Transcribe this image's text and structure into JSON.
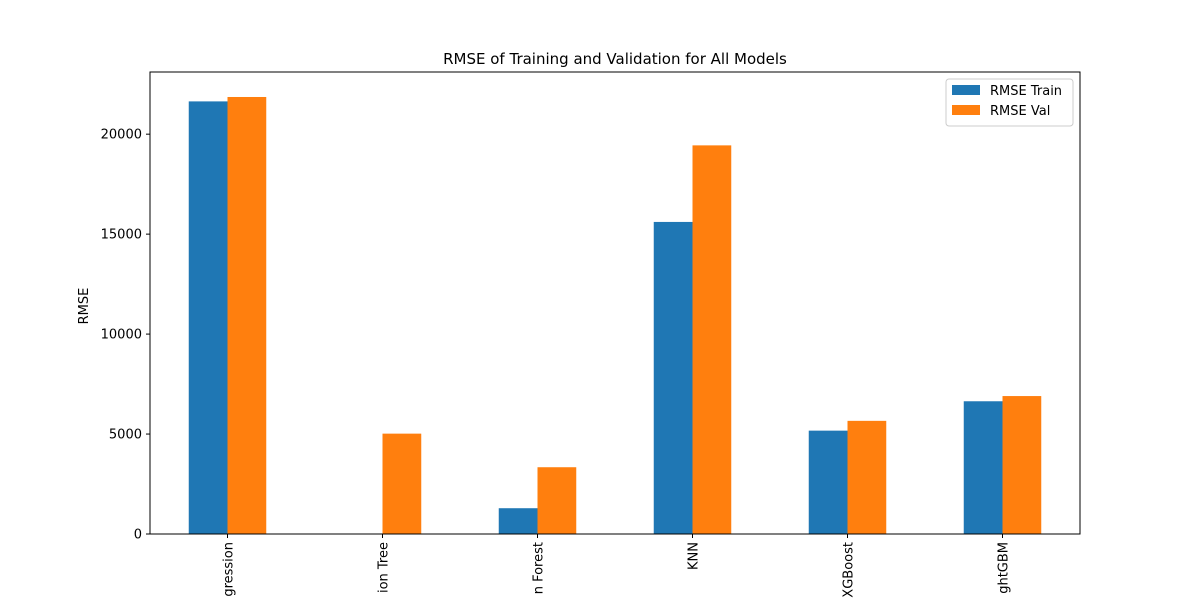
{
  "chart_data": {
    "type": "bar",
    "title": "RMSE of Training and Validation for All Models",
    "xlabel": "",
    "ylabel": "RMSE",
    "ylim": [
      0,
      23110
    ],
    "yticks": [
      0,
      5000,
      10000,
      15000,
      20000
    ],
    "ytick_labels": [
      "0",
      "5000",
      "10000",
      "15000",
      "20000"
    ],
    "categories": [
      "gression",
      "ion Tree",
      "n Forest",
      "KNN",
      "XGBoost",
      "ghtGBM"
    ],
    "series": [
      {
        "name": "RMSE Train",
        "color": "#1f77b4",
        "values": [
          21640,
          0,
          1290,
          15610,
          5170,
          6640
        ]
      },
      {
        "name": "RMSE Val",
        "color": "#ff7f0e",
        "values": [
          21860,
          5020,
          3340,
          19440,
          5660,
          6900
        ]
      }
    ],
    "legend_position": "top-right",
    "grid": false
  }
}
